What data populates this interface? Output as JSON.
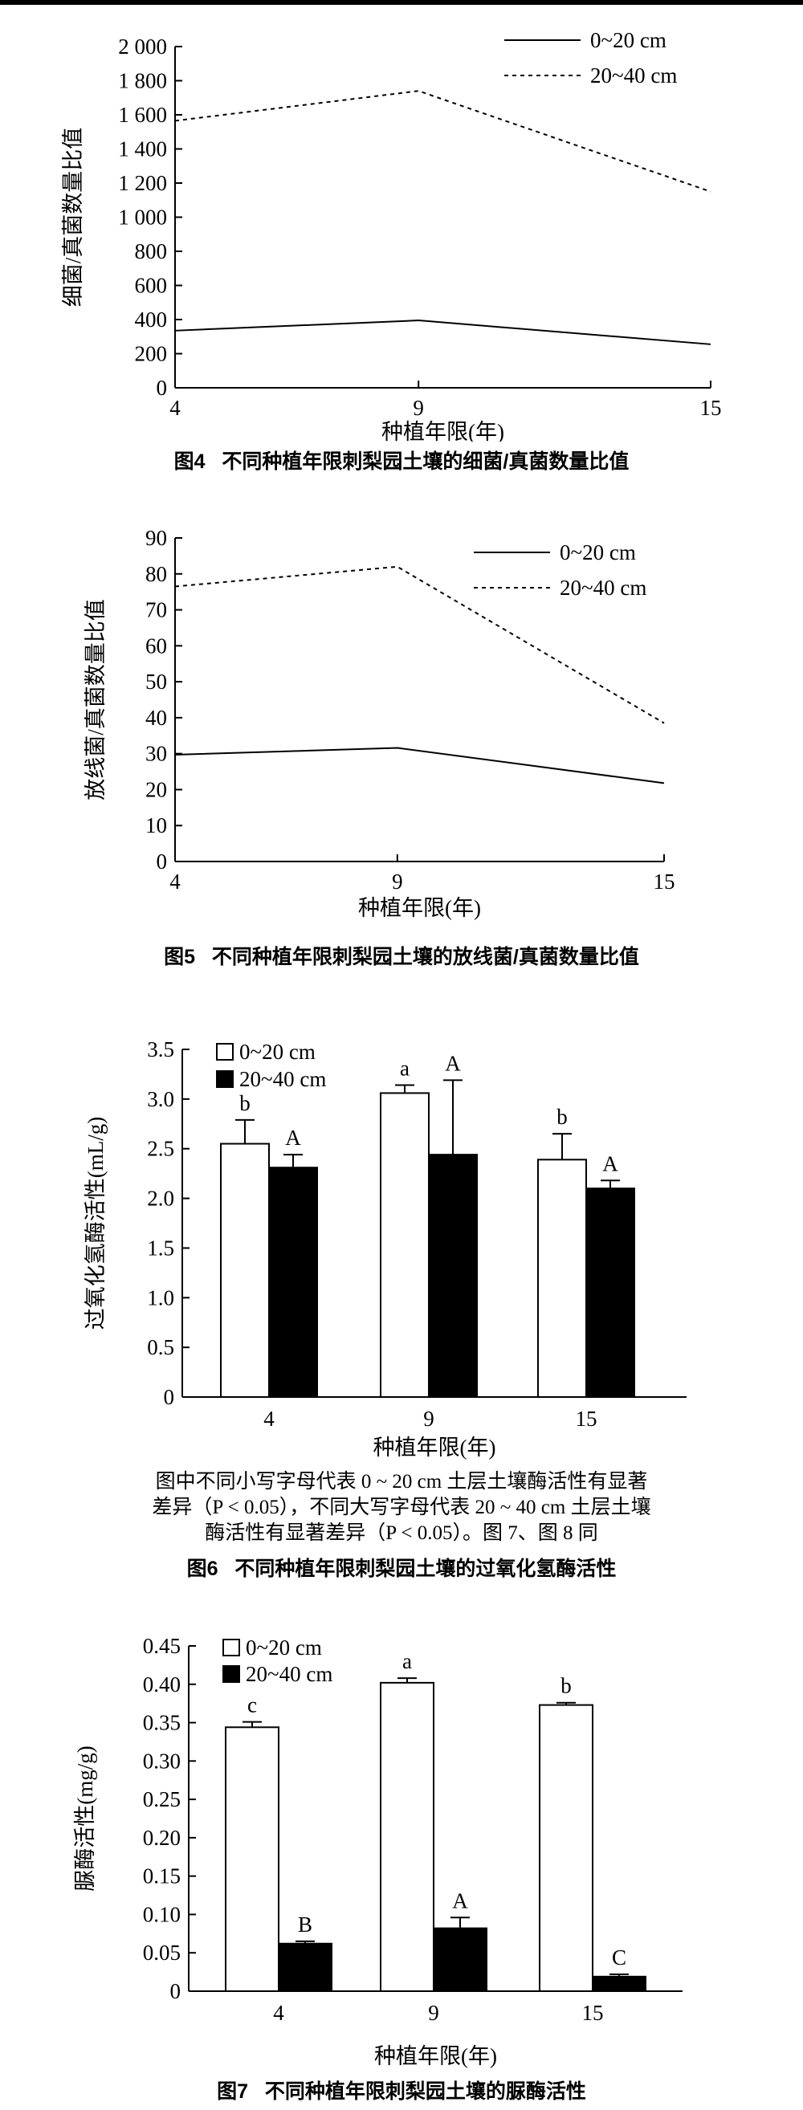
{
  "figures": [
    {
      "caption_no": "图4",
      "caption": "不同种植年限刺梨园土壤的细菌/真菌数量比值",
      "chart_data": {
        "type": "line",
        "x": [
          4,
          9,
          15
        ],
        "xticks": [
          "4",
          "9",
          "15"
        ],
        "xlabel": "种植年限(年)",
        "ylabel": "细菌/真菌数量比值",
        "ylim": [
          0,
          2000
        ],
        "yticks": [
          0,
          200,
          400,
          600,
          800,
          1000,
          1200,
          1400,
          1600,
          1800,
          2000
        ],
        "ytick_labels": [
          "0",
          "200",
          "400",
          "600",
          "800",
          "1 000",
          "1 200",
          "1 400",
          "1 600",
          "1 800",
          "2 000"
        ],
        "legend": "top-right",
        "series": [
          {
            "name": "0~20 cm",
            "style": "solid",
            "values": [
              335,
              395,
              255
            ]
          },
          {
            "name": "20~40 cm",
            "style": "dotted",
            "values": [
              1565,
              1740,
              1150
            ]
          }
        ]
      }
    },
    {
      "caption_no": "图5",
      "caption": "不同种植年限刺梨园土壤的放线菌/真菌数量比值",
      "chart_data": {
        "type": "line",
        "x": [
          4,
          9,
          15
        ],
        "xticks": [
          "4",
          "9",
          "15"
        ],
        "xlabel": "种植年限(年)",
        "ylabel": "放线菌/真菌数量比值",
        "ylim": [
          0,
          90
        ],
        "yticks": [
          0,
          10,
          20,
          30,
          40,
          50,
          60,
          70,
          80,
          90
        ],
        "ytick_labels": [
          "0",
          "10",
          "20",
          "30",
          "40",
          "50",
          "60",
          "70",
          "80",
          "90"
        ],
        "legend": "top-right",
        "series": [
          {
            "name": "0~20 cm",
            "style": "solid",
            "values": [
              29.7,
              31.6,
              21.8
            ]
          },
          {
            "name": "20~40 cm",
            "style": "dotted",
            "values": [
              76.5,
              82.0,
              38.5
            ]
          }
        ]
      }
    },
    {
      "caption_no": "图6",
      "caption": "不同种植年限刺梨园土壤的过氧化氢酶活性",
      "note": [
        "图中不同小写字母代表 0 ~ 20 cm 土层土壤酶活性有显著",
        "差异（P < 0.05），不同大写字母代表 20 ~ 40 cm 土层土壤",
        "酶活性有显著差异（P < 0.05）。图 7、图 8 同"
      ],
      "chart_data": {
        "type": "bar",
        "categories": [
          "4",
          "9",
          "15"
        ],
        "xlabel": "种植年限(年)",
        "ylabel": "过氧化氢酶活性(mL/g)",
        "ylim": [
          0,
          3.5
        ],
        "yticks": [
          0,
          0.5,
          1.0,
          1.5,
          2.0,
          2.5,
          3.0,
          3.5
        ],
        "ytick_labels": [
          "0",
          "0.5",
          "1.0",
          "1.5",
          "2.0",
          "2.5",
          "3.0",
          "3.5"
        ],
        "legend": "top-left",
        "series": [
          {
            "name": "0~20 cm",
            "fill": "#ffffff",
            "values": [
              2.55,
              3.06,
              2.39
            ],
            "errors": [
              0.24,
              0.08,
              0.26
            ],
            "labels": [
              "b",
              "a",
              "b"
            ]
          },
          {
            "name": "20~40 cm",
            "fill": "#000000",
            "values": [
              2.31,
              2.44,
              2.1
            ],
            "errors": [
              0.13,
              0.75,
              0.08
            ],
            "labels": [
              "A",
              "A",
              "A"
            ]
          }
        ]
      }
    },
    {
      "caption_no": "图7",
      "caption": "不同种植年限刺梨园土壤的脲酶活性",
      "chart_data": {
        "type": "bar",
        "categories": [
          "4",
          "9",
          "15"
        ],
        "xlabel": "种植年限(年)",
        "ylabel": "脲酶活性(mg/g)",
        "ylim": [
          0,
          0.45
        ],
        "yticks": [
          0,
          0.05,
          0.1,
          0.15,
          0.2,
          0.25,
          0.3,
          0.35,
          0.4,
          0.45
        ],
        "ytick_labels": [
          "0",
          "0.05",
          "0.10",
          "0.15",
          "0.20",
          "0.25",
          "0.30",
          "0.35",
          "0.40",
          "0.45"
        ],
        "legend": "top-left",
        "series": [
          {
            "name": "0~20 cm",
            "fill": "#ffffff",
            "values": [
              0.344,
              0.402,
              0.373
            ],
            "errors": [
              0.007,
              0.006,
              0.003
            ],
            "labels": [
              "c",
              "a",
              "b"
            ]
          },
          {
            "name": "20~40 cm",
            "fill": "#000000",
            "values": [
              0.062,
              0.082,
              0.019
            ],
            "errors": [
              0.003,
              0.014,
              0.003
            ],
            "labels": [
              "B",
              "A",
              "C"
            ]
          }
        ]
      }
    }
  ]
}
